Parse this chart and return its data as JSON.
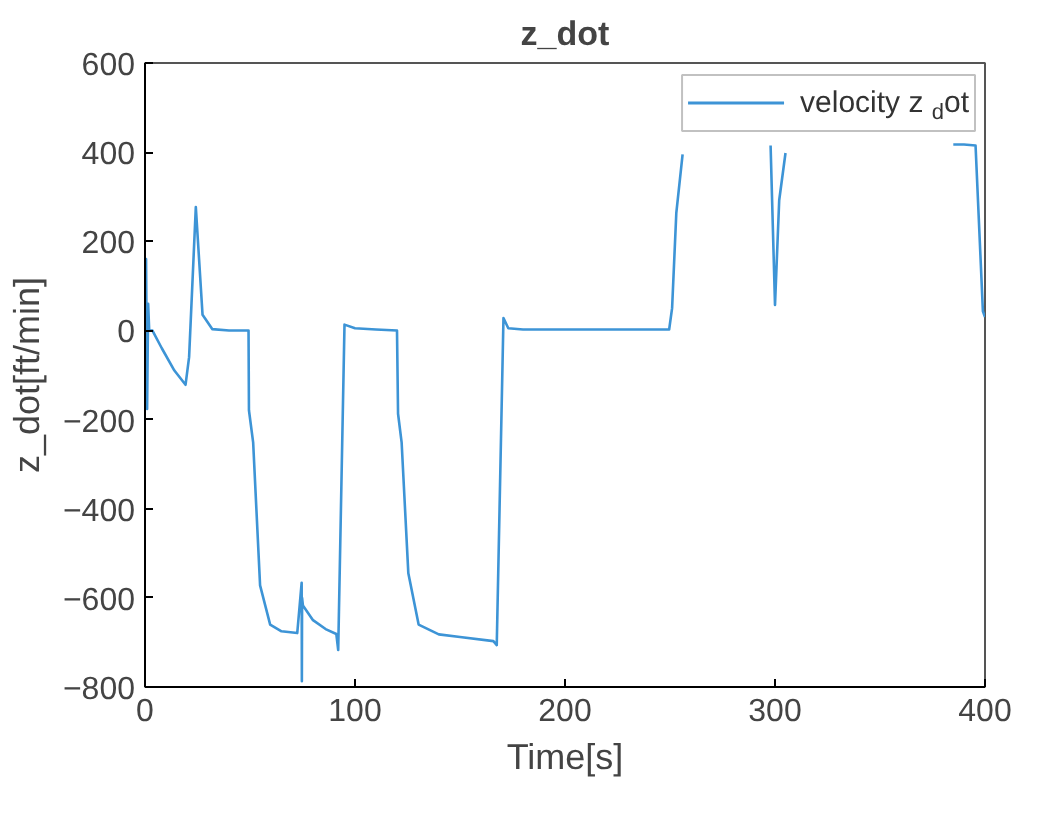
{
  "chart_data": {
    "type": "line",
    "title": "z_dot",
    "xlabel": "Time[s]",
    "ylabel": "z_dot[ft/min]",
    "x": [
      0,
      0.5,
      1,
      1.5,
      2,
      3.5,
      8,
      14,
      19.3,
      21,
      24.2,
      27.4,
      32,
      40,
      49.3,
      49.5,
      51.5,
      54.8,
      59.6,
      65,
      72.5,
      74.6,
      74.7,
      74.8,
      75.2,
      80,
      86,
      91.1,
      92,
      95,
      100,
      110,
      120,
      120.5,
      122.2,
      125.4,
      130.3,
      139.9,
      150,
      165.9,
      167.5,
      170.7,
      173,
      180,
      200,
      230,
      249.6,
      251,
      253,
      256,
      270,
      297.9,
      300,
      302,
      305,
      340,
      384.9,
      390,
      395.5,
      399,
      400
    ],
    "series": [
      {
        "name": "velocity  z$_{d}$ot",
        "color": "#3d94d6",
        "values": [
          0,
          160,
          -176,
          60,
          0,
          0,
          -40,
          -90,
          -122,
          -60,
          277,
          35,
          3,
          0,
          0,
          -179,
          -251,
          -572,
          -660,
          -675,
          -679,
          -566,
          -787,
          -600,
          -617,
          -650,
          -670,
          -681,
          -717,
          13,
          5,
          2,
          0,
          -187,
          -251,
          -545,
          -660,
          -682,
          -688,
          -697,
          -706,
          28,
          5,
          2,
          2,
          2,
          2,
          50,
          263,
          395,
          null,
          415,
          57,
          292,
          398,
          null,
          417,
          417,
          415,
          43,
          30
        ]
      }
    ],
    "xlim": [
      0,
      400
    ],
    "ylim": [
      -800,
      600
    ],
    "xticks": [
      0,
      100,
      200,
      300,
      400
    ],
    "yticks": [
      -800,
      -600,
      -400,
      -200,
      0,
      200,
      400,
      600
    ],
    "grid": false,
    "legend": "top right",
    "line_style": "solid"
  }
}
